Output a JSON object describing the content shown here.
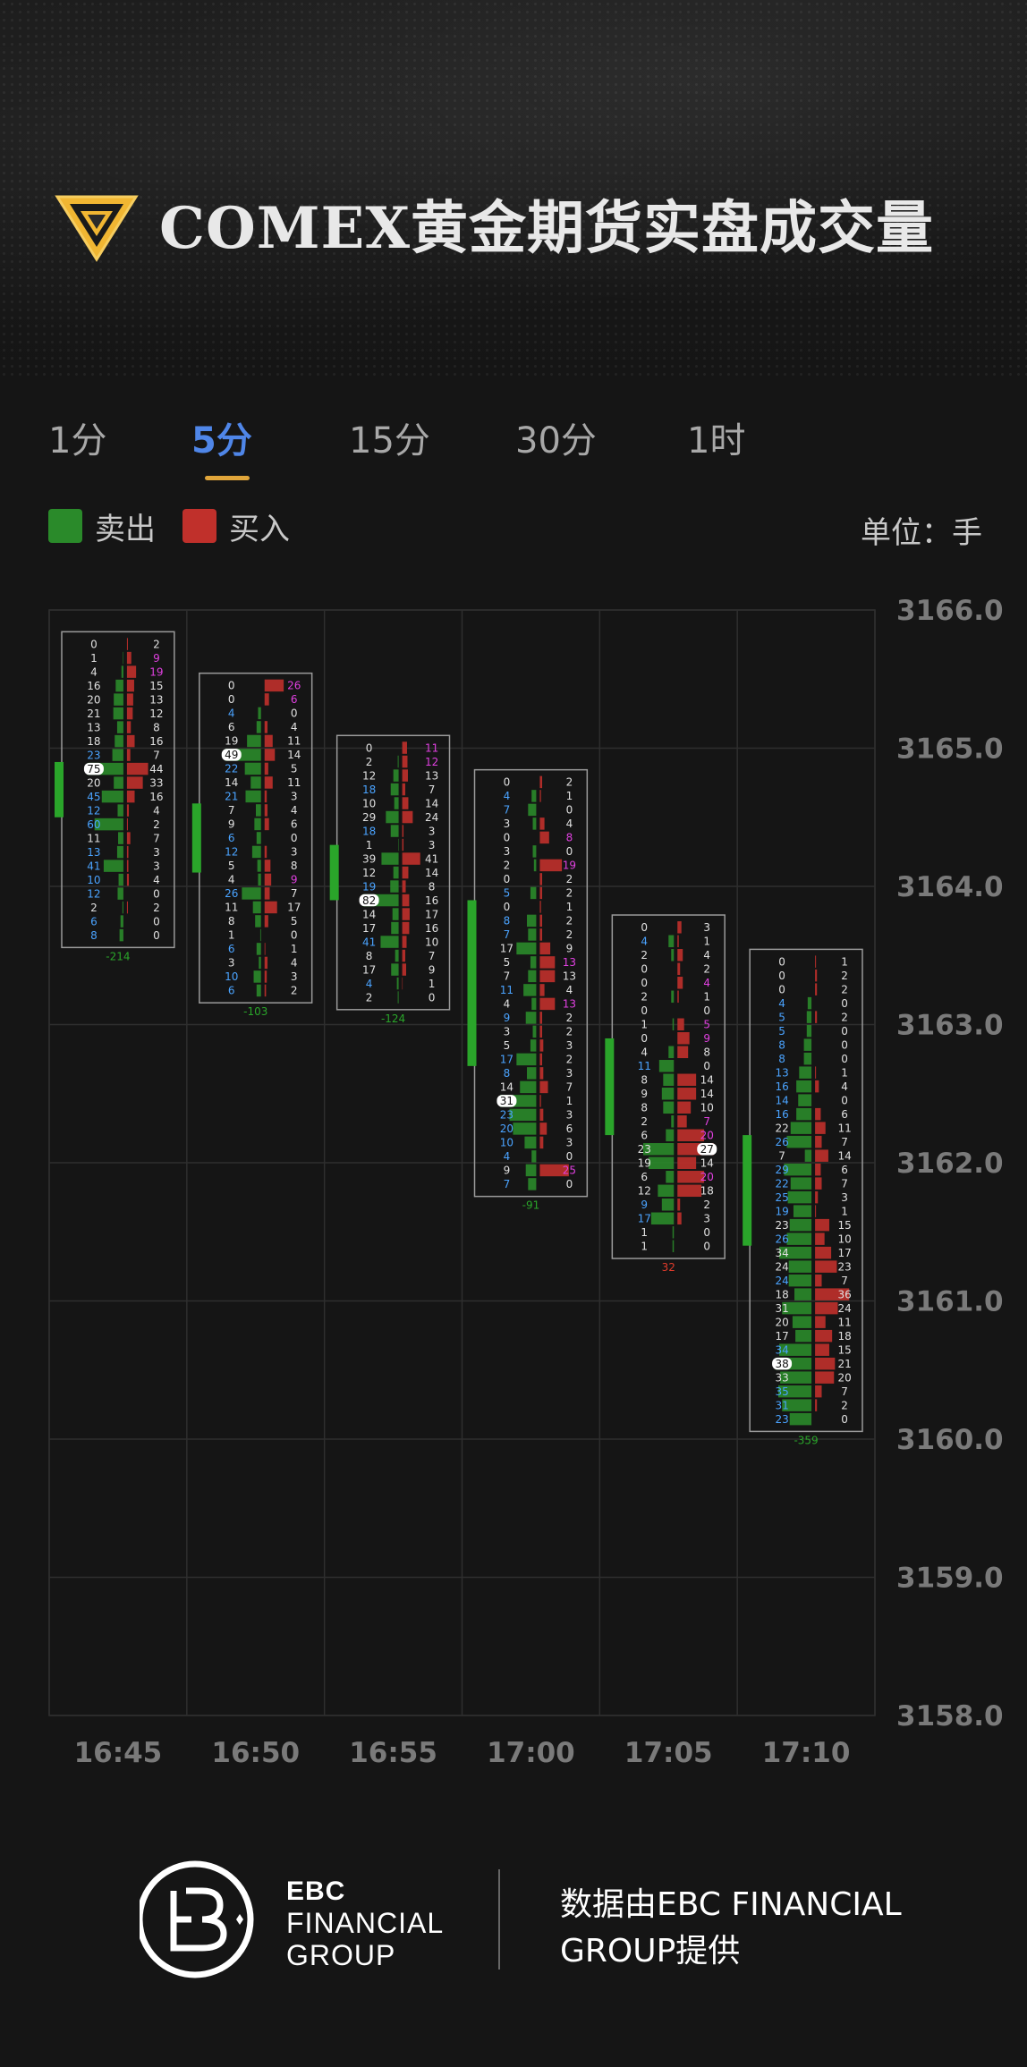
{
  "title": "COMEX黄金期货实盘成交量",
  "tabs": [
    {
      "label": "1分",
      "active": false
    },
    {
      "label": "5分",
      "active": true
    },
    {
      "label": "15分",
      "active": false
    },
    {
      "label": "30分",
      "active": false
    },
    {
      "label": "1时",
      "active": false
    }
  ],
  "legend": {
    "sell_label": "卖出",
    "buy_label": "买入",
    "sell_color": "#2a8a2a",
    "buy_color": "#c0302b"
  },
  "unit_label": "单位：手",
  "footer": {
    "brand_line1": "EBC",
    "brand_line2": "FINANCIAL",
    "brand_line3": "GROUP",
    "provided_by": "数据由EBC FINANCIAL GROUP提供"
  },
  "chart_data": {
    "type": "footprint",
    "y_axis_ticks": [
      3166.0,
      3165.0,
      3164.0,
      3163.0,
      3162.0,
      3161.0,
      3160.0,
      3159.0,
      3158.0
    ],
    "ylim": [
      3158.0,
      3166.0
    ],
    "x_axis_ticks": [
      "16:45",
      "16:50",
      "16:55",
      "17:00",
      "17:05",
      "17:10"
    ],
    "grid": true,
    "candles": [
      {
        "time": "16:45",
        "open": 3164.5,
        "close": 3164.9,
        "delta": "-214",
        "rows": [
          [
            0,
            2
          ],
          [
            1,
            9
          ],
          [
            4,
            19
          ],
          [
            16,
            15
          ],
          [
            20,
            13
          ],
          [
            21,
            12
          ],
          [
            13,
            8
          ],
          [
            18,
            16
          ],
          [
            23,
            7
          ],
          [
            75,
            44
          ],
          [
            20,
            33
          ],
          [
            45,
            16
          ],
          [
            12,
            4
          ],
          [
            60,
            2
          ],
          [
            11,
            7
          ],
          [
            13,
            3
          ],
          [
            41,
            3
          ],
          [
            10,
            4
          ],
          [
            12,
            0
          ],
          [
            2,
            2
          ],
          [
            6,
            0
          ],
          [
            8,
            0
          ]
        ]
      },
      {
        "time": "16:50",
        "open": 3164.1,
        "close": 3164.6,
        "delta": "-103",
        "rows": [
          [
            0,
            26
          ],
          [
            0,
            6
          ],
          [
            4,
            0
          ],
          [
            6,
            4
          ],
          [
            19,
            11
          ],
          [
            49,
            14
          ],
          [
            22,
            5
          ],
          [
            14,
            11
          ],
          [
            21,
            3
          ],
          [
            7,
            4
          ],
          [
            9,
            6
          ],
          [
            6,
            0
          ],
          [
            12,
            3
          ],
          [
            5,
            8
          ],
          [
            4,
            9
          ],
          [
            26,
            7
          ],
          [
            11,
            17
          ],
          [
            8,
            5
          ],
          [
            1,
            0
          ],
          [
            6,
            1
          ],
          [
            3,
            4
          ],
          [
            10,
            3
          ],
          [
            6,
            2
          ]
        ]
      },
      {
        "time": "16:55",
        "open": 3163.9,
        "close": 3164.3,
        "delta": "-124",
        "rows": [
          [
            0,
            11
          ],
          [
            2,
            12
          ],
          [
            12,
            13
          ],
          [
            18,
            7
          ],
          [
            10,
            14
          ],
          [
            29,
            24
          ],
          [
            18,
            3
          ],
          [
            1,
            3
          ],
          [
            39,
            41
          ],
          [
            12,
            14
          ],
          [
            19,
            8
          ],
          [
            82,
            16
          ],
          [
            14,
            17
          ],
          [
            17,
            16
          ],
          [
            41,
            10
          ],
          [
            8,
            7
          ],
          [
            17,
            9
          ],
          [
            4,
            1
          ],
          [
            2,
            0
          ]
        ]
      },
      {
        "time": "17:00",
        "open": 3163.9,
        "close": 3162.7,
        "delta": "-91",
        "rows": [
          [
            0,
            2
          ],
          [
            4,
            1
          ],
          [
            7,
            0
          ],
          [
            3,
            4
          ],
          [
            0,
            8
          ],
          [
            3,
            0
          ],
          [
            2,
            19
          ],
          [
            0,
            2
          ],
          [
            5,
            2
          ],
          [
            0,
            1
          ],
          [
            8,
            2
          ],
          [
            7,
            2
          ],
          [
            17,
            9
          ],
          [
            5,
            13
          ],
          [
            7,
            13
          ],
          [
            11,
            4
          ],
          [
            4,
            13
          ],
          [
            9,
            2
          ],
          [
            3,
            2
          ],
          [
            5,
            3
          ],
          [
            17,
            2
          ],
          [
            8,
            3
          ],
          [
            14,
            7
          ],
          [
            31,
            1
          ],
          [
            23,
            3
          ],
          [
            20,
            6
          ],
          [
            10,
            3
          ],
          [
            4,
            0
          ],
          [
            9,
            25
          ],
          [
            7,
            0
          ]
        ]
      },
      {
        "time": "17:05",
        "open": 3162.2,
        "close": 3162.9,
        "delta": "32",
        "rows": [
          [
            0,
            3
          ],
          [
            4,
            1
          ],
          [
            2,
            4
          ],
          [
            0,
            2
          ],
          [
            0,
            4
          ],
          [
            2,
            1
          ],
          [
            0,
            0
          ],
          [
            1,
            5
          ],
          [
            0,
            9
          ],
          [
            4,
            8
          ],
          [
            11,
            0
          ],
          [
            8,
            14
          ],
          [
            9,
            14
          ],
          [
            8,
            10
          ],
          [
            2,
            7
          ],
          [
            6,
            20
          ],
          [
            23,
            27
          ],
          [
            19,
            14
          ],
          [
            6,
            20
          ],
          [
            12,
            18
          ],
          [
            9,
            2
          ],
          [
            17,
            3
          ],
          [
            1,
            0
          ],
          [
            1,
            0
          ]
        ]
      },
      {
        "time": "17:10",
        "open": 3161.4,
        "close": 3162.2,
        "delta": "-359",
        "rows": [
          [
            0,
            1
          ],
          [
            0,
            2
          ],
          [
            0,
            2
          ],
          [
            4,
            0
          ],
          [
            5,
            2
          ],
          [
            5,
            0
          ],
          [
            8,
            0
          ],
          [
            8,
            0
          ],
          [
            13,
            1
          ],
          [
            16,
            4
          ],
          [
            14,
            0
          ],
          [
            16,
            6
          ],
          [
            22,
            11
          ],
          [
            26,
            7
          ],
          [
            7,
            14
          ],
          [
            29,
            6
          ],
          [
            22,
            7
          ],
          [
            25,
            3
          ],
          [
            19,
            1
          ],
          [
            23,
            15
          ],
          [
            26,
            10
          ],
          [
            34,
            17
          ],
          [
            24,
            23
          ],
          [
            24,
            7
          ],
          [
            18,
            36
          ],
          [
            31,
            24
          ],
          [
            20,
            11
          ],
          [
            17,
            18
          ],
          [
            34,
            15
          ],
          [
            38,
            21
          ],
          [
            33,
            20
          ],
          [
            35,
            7
          ],
          [
            31,
            2
          ],
          [
            23,
            0
          ]
        ]
      }
    ]
  }
}
